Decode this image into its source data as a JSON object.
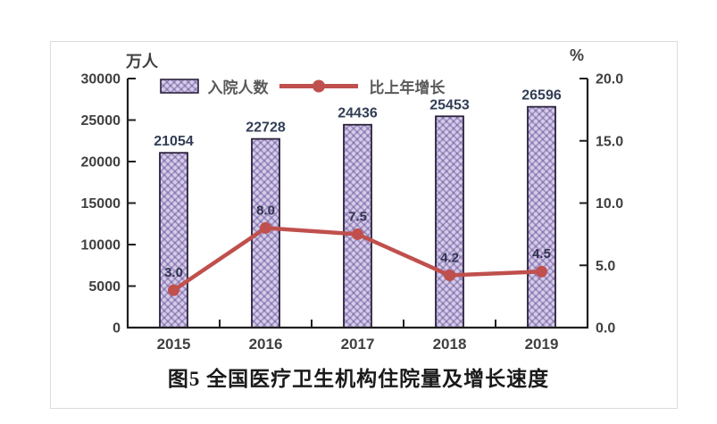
{
  "page": {
    "background": "#ffffff",
    "frame_border_color": "#dbdbdb"
  },
  "chart_data": {
    "type": "bar",
    "subtype": "bar-line combo, dual axis",
    "title": "图5  全国医疗卫生机构住院量及增长速度",
    "categories": [
      "2015",
      "2016",
      "2017",
      "2018",
      "2019"
    ],
    "series": [
      {
        "name": "入院人数",
        "type": "bar",
        "axis": "left",
        "unit": "万人",
        "values": [
          21054,
          22728,
          24436,
          25453,
          26596
        ],
        "labels": [
          "21054",
          "22728",
          "24436",
          "25453",
          "26596"
        ],
        "fill_base": "#d4cce7",
        "pattern_ring_color": "#a393c6",
        "pattern_dot_color": "#6f5f9c",
        "border_color": "#2b2139"
      },
      {
        "name": "比上年增长",
        "type": "line",
        "axis": "right",
        "unit": "%",
        "values": [
          3.0,
          8.0,
          7.5,
          4.2,
          4.5
        ],
        "labels": [
          "3.0",
          "8.0",
          "7.5",
          "4.2",
          "4.5"
        ],
        "color": "#c0504d"
      }
    ],
    "left_axis": {
      "title": "万人",
      "min": 0,
      "max": 30000,
      "step": 5000,
      "tick_labels": [
        "0",
        "5000",
        "10000",
        "15000",
        "20000",
        "25000",
        "30000"
      ]
    },
    "right_axis": {
      "title": "%",
      "min": 0,
      "max": 20,
      "step": 5,
      "tick_labels": [
        "0.0",
        "5.0",
        "10.0",
        "15.0",
        "20.0"
      ]
    },
    "legend_position": "top-inside",
    "grid": false,
    "axis_color": "#1f1f1f",
    "tick_label_color": "#404040",
    "bar_label_color": "#313d55",
    "point_label_color": "#333550"
  }
}
